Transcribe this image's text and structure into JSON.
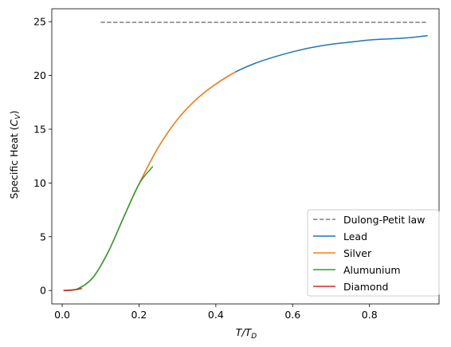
{
  "chart_data": {
    "type": "line",
    "xlabel_base": "T/T",
    "xlabel_sub": "D",
    "ylabel_base": "Specific Heat (",
    "ylabel_math": "C",
    "ylabel_sub": "V",
    "ylabel_close": ")",
    "xlim": [
      -0.027,
      0.981
    ],
    "ylim": [
      -1.25,
      26.2
    ],
    "xticks": [
      0.0,
      0.2,
      0.4,
      0.6,
      0.8
    ],
    "xtick_labels": [
      "0.0",
      "0.2",
      "0.4",
      "0.6",
      "0.8"
    ],
    "yticks": [
      0,
      5,
      10,
      15,
      20,
      25
    ],
    "ytick_labels": [
      "0",
      "5",
      "10",
      "15",
      "20",
      "25"
    ],
    "legend_position": "lower right",
    "grid": false,
    "dulong_petit": {
      "name": "Dulong-Petit law",
      "value": 24.94,
      "x_range": [
        0.1,
        0.95
      ],
      "color": "#7f7f7f",
      "style": "dashed"
    },
    "series": [
      {
        "name": "Lead",
        "color": "#1f77b4",
        "x": [
          0.005,
          0.04,
          0.08,
          0.12,
          0.16,
          0.2,
          0.25,
          0.3,
          0.35,
          0.4,
          0.45,
          0.5,
          0.55,
          0.6,
          0.65,
          0.7,
          0.75,
          0.8,
          0.85,
          0.9,
          0.95
        ],
        "values": [
          0.0,
          0.15,
          1.2,
          3.6,
          6.8,
          9.9,
          13.3,
          15.9,
          17.8,
          19.2,
          20.3,
          21.1,
          21.7,
          22.2,
          22.6,
          22.9,
          23.1,
          23.3,
          23.4,
          23.5,
          23.7
        ]
      },
      {
        "name": "Silver",
        "color": "#ff7f0e",
        "x": [
          0.005,
          0.04,
          0.08,
          0.12,
          0.16,
          0.2,
          0.25,
          0.3,
          0.35,
          0.4,
          0.45
        ],
        "values": [
          0.0,
          0.15,
          1.2,
          3.6,
          6.8,
          9.9,
          13.3,
          15.9,
          17.8,
          19.2,
          20.3
        ]
      },
      {
        "name": "Alumunium",
        "color": "#2ca02c",
        "x": [
          0.005,
          0.04,
          0.08,
          0.12,
          0.16,
          0.2,
          0.235
        ],
        "values": [
          0.0,
          0.15,
          1.2,
          3.6,
          6.8,
          9.9,
          11.5
        ]
      },
      {
        "name": "Diamond",
        "color": "#d62728",
        "x": [
          0.005,
          0.02,
          0.04,
          0.05
        ],
        "values": [
          0.0,
          0.03,
          0.1,
          0.18
        ]
      }
    ]
  }
}
